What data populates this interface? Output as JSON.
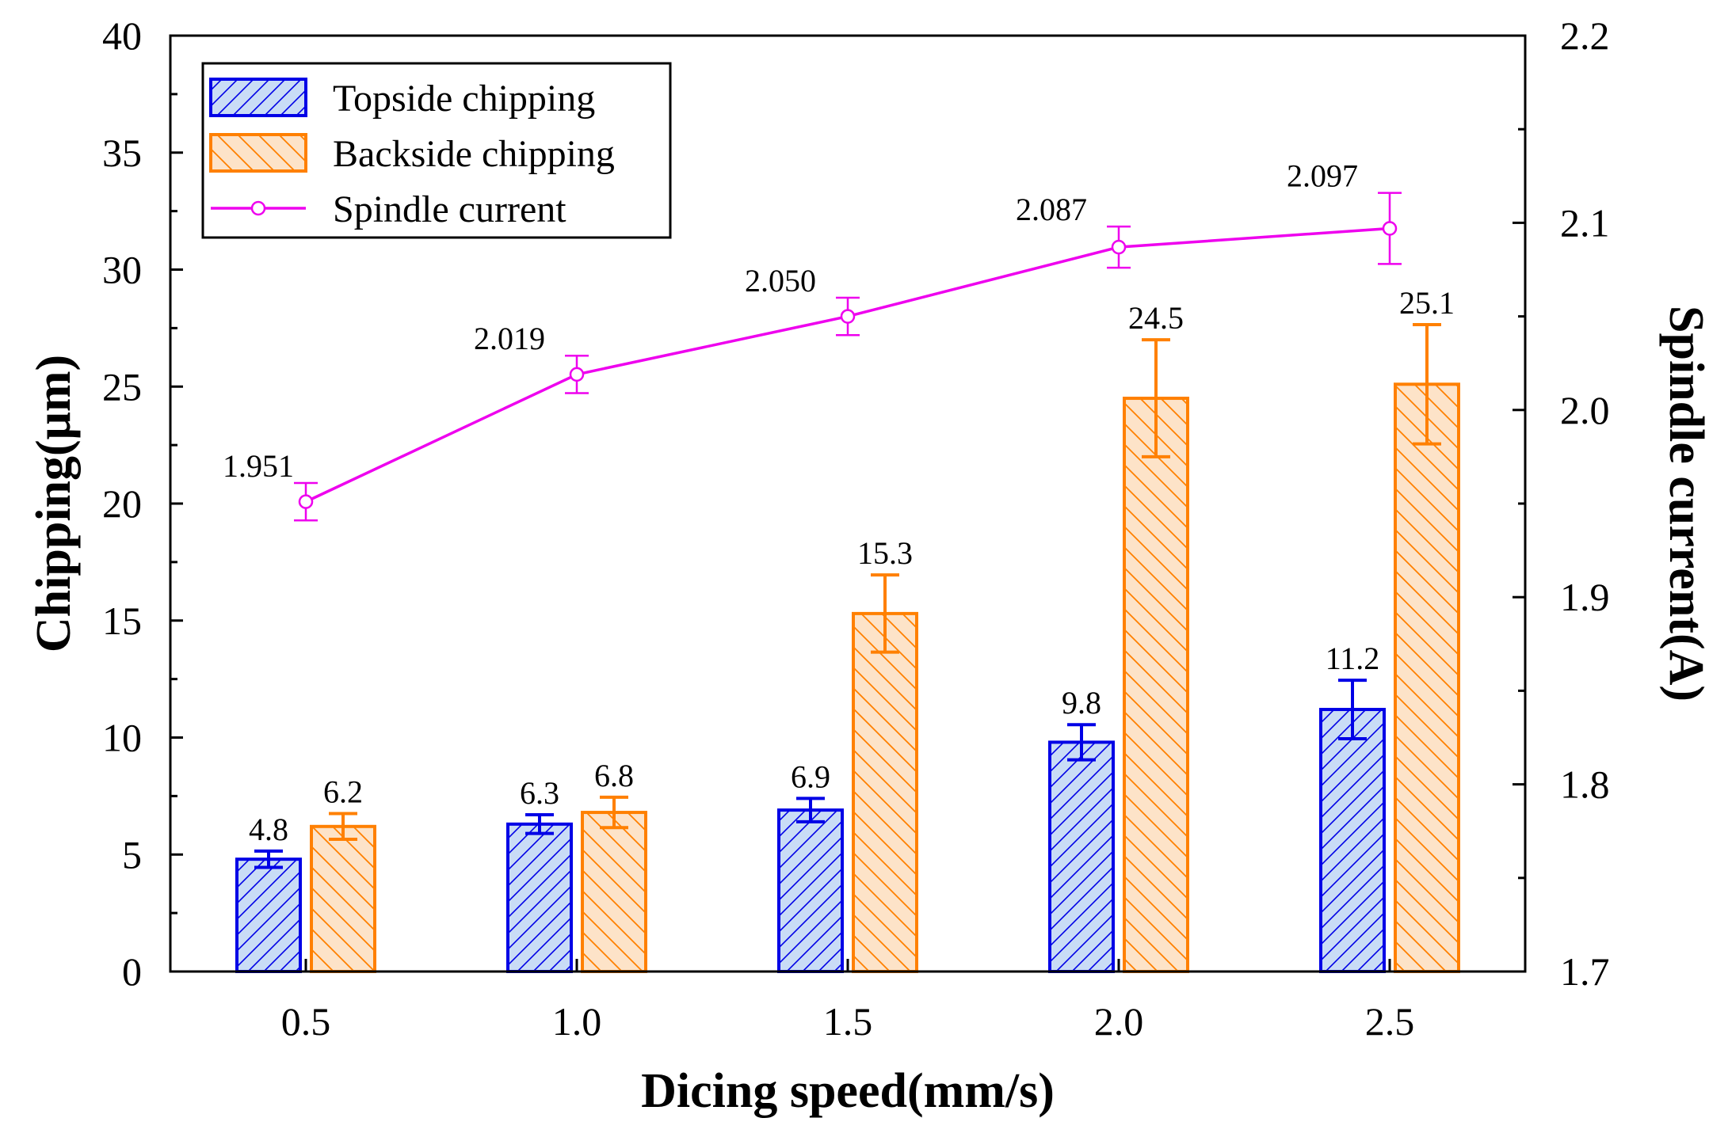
{
  "chart_data": {
    "type": "bar",
    "xlabel": "Dicing speed(mm/s)",
    "ylabel": "Chipping(μm)",
    "y2label": "Spindle current(A)",
    "categories": [
      "0.5",
      "1.0",
      "1.5",
      "2.0",
      "2.5"
    ],
    "ylim": [
      0,
      40
    ],
    "yticks": [
      "0",
      "5",
      "10",
      "15",
      "20",
      "25",
      "30",
      "35",
      "40"
    ],
    "y2lim": [
      1.7,
      2.2
    ],
    "y2ticks": [
      "1.7",
      "1.8",
      "1.9",
      "2.0",
      "2.1",
      "2.2"
    ],
    "legend_position": "top-left",
    "series": [
      {
        "name": "Topside chipping",
        "kind": "bar",
        "axis": "left",
        "values": [
          4.8,
          6.3,
          6.9,
          9.8,
          11.2
        ],
        "labels": [
          "4.8",
          "6.3",
          "6.9",
          "9.8",
          "11.2"
        ],
        "errors": [
          0.35,
          0.4,
          0.5,
          0.75,
          1.25
        ],
        "color": "#0000e6",
        "fill": "#c9dcf6"
      },
      {
        "name": "Backside chipping",
        "kind": "bar",
        "axis": "left",
        "values": [
          6.2,
          6.8,
          15.3,
          24.5,
          25.1
        ],
        "labels": [
          "6.2",
          "6.8",
          "15.3",
          "24.5",
          "25.1"
        ],
        "errors": [
          0.55,
          0.65,
          1.65,
          2.5,
          2.55
        ],
        "color": "#ff8000",
        "fill": "#fde3c8"
      },
      {
        "name": "Spindle current",
        "kind": "line",
        "axis": "right",
        "values": [
          1.951,
          2.019,
          2.05,
          2.087,
          2.097
        ],
        "labels": [
          "1.951",
          "2.019",
          "2.050",
          "2.087",
          "2.097"
        ],
        "errors": [
          0.01,
          0.01,
          0.01,
          0.011,
          0.019
        ],
        "color": "#ee00ee"
      }
    ]
  }
}
